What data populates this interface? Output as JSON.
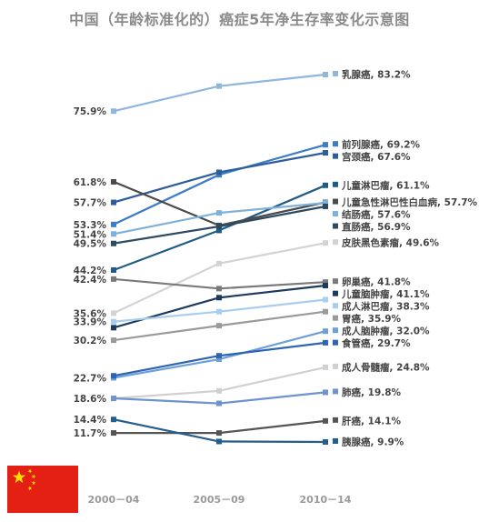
{
  "title": "中国（年龄标准化的）癌症5年净生存率变化示意图",
  "flag": {
    "country": "China",
    "colors": {
      "field": "#e41f14",
      "stars": "#ffde00"
    }
  },
  "chart_data": {
    "type": "line",
    "title": "中国（年龄标准化的）癌症5年净生存率变化示意图",
    "xlabel": "",
    "ylabel": "",
    "categories": [
      "2000－04",
      "2005－09",
      "2010－14"
    ],
    "ylim": [
      7,
      88
    ],
    "grid": false,
    "legend": "end-of-line labels",
    "start_tick_labels": [
      "75.9%",
      "61.8%",
      "57.7%",
      "53.3%",
      "51.4%",
      "49.5%",
      "44.2%",
      "42.4%",
      "35.6%",
      "33.9%",
      "30.2%",
      "22.7%",
      "18.6%",
      "14.4%",
      "11.7%"
    ],
    "series": [
      {
        "name": "乳腺癌",
        "values": [
          75.9,
          80.9,
          83.2
        ],
        "end_label": "乳腺癌, 83.2%",
        "color": "#8fb6db"
      },
      {
        "name": "前列腺癌",
        "values": [
          53.3,
          63.2,
          69.2
        ],
        "end_label": "前列腺癌, 69.2%",
        "color": "#3d7dc4"
      },
      {
        "name": "宫颈癌",
        "values": [
          57.7,
          63.7,
          67.6
        ],
        "end_label": "宫颈癌, 67.6%",
        "color": "#2e5d9b"
      },
      {
        "name": "儿童淋巴瘤",
        "values": [
          44.2,
          52.1,
          61.1
        ],
        "end_label": "儿童淋巴瘤, 61.1%",
        "color": "#1f5c85"
      },
      {
        "name": "儿童急性淋巴性白血病",
        "values": [
          61.8,
          53.1,
          57.7
        ],
        "end_label": "儿童急性淋巴性白血病, 57.7%",
        "color": "#4a4a4a"
      },
      {
        "name": "结肠癌",
        "values": [
          51.4,
          55.6,
          57.6
        ],
        "end_label": "结肠癌, 57.6%",
        "color": "#7fb1d9"
      },
      {
        "name": "直肠癌",
        "values": [
          49.5,
          52.9,
          56.9
        ],
        "end_label": "直肠癌, 56.9%",
        "color": "#2d4a63"
      },
      {
        "name": "皮肤黑色素瘤",
        "values": [
          35.6,
          45.5,
          49.6
        ],
        "end_label": "皮肤黑色素瘤, 49.6%",
        "color": "#d3d3d3"
      },
      {
        "name": "卵巢癌",
        "values": [
          42.4,
          40.5,
          41.8
        ],
        "end_label": "卵巢癌, 41.8%",
        "color": "#7a7a7a"
      },
      {
        "name": "儿童脑肿瘤",
        "values": [
          32.7,
          38.7,
          41.1
        ],
        "end_label": "儿童脑肿瘤, 41.1%",
        "color": "#1c3a5c"
      },
      {
        "name": "成人淋巴瘤",
        "values": [
          33.9,
          35.9,
          38.3
        ],
        "end_label": "成人淋巴瘤, 38.3%",
        "color": "#a9cdee"
      },
      {
        "name": "胃癌",
        "values": [
          30.2,
          33.1,
          35.9
        ],
        "end_label": "胃癌, 35.9%",
        "color": "#9a9a9a"
      },
      {
        "name": "成人脑肿瘤",
        "values": [
          22.7,
          26.4,
          32.0
        ],
        "end_label": "成人脑肿瘤, 32.0%",
        "color": "#6ea0d8"
      },
      {
        "name": "食管癌",
        "values": [
          23.1,
          27.1,
          29.7
        ],
        "end_label": "食管癌, 29.7%",
        "color": "#2f64b3"
      },
      {
        "name": "成人骨髓瘤",
        "values": [
          18.6,
          20.1,
          24.8
        ],
        "end_label": "成人骨髓瘤, 24.8%",
        "color": "#d0d0d0"
      },
      {
        "name": "肺癌",
        "values": [
          18.6,
          17.6,
          19.8
        ],
        "end_label": "肺癌, 19.8%",
        "color": "#6e93cf"
      },
      {
        "name": "肝癌",
        "values": [
          11.7,
          11.7,
          14.1
        ],
        "end_label": "肝癌, 14.1%",
        "color": "#555555"
      },
      {
        "name": "胰腺癌",
        "values": [
          14.4,
          10.0,
          9.9
        ],
        "end_label": "胰腺癌, 9.9%",
        "color": "#245e8c"
      }
    ]
  }
}
